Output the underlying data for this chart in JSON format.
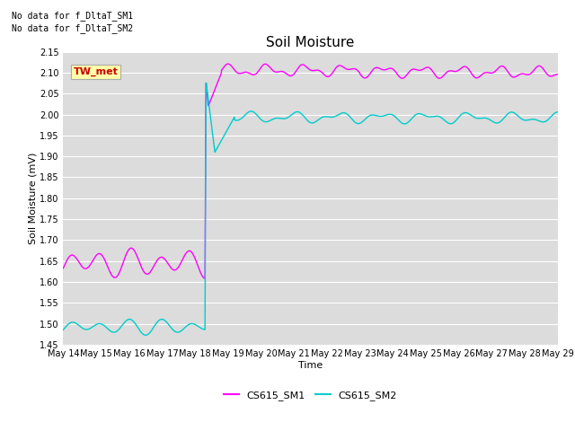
{
  "title": "Soil Moisture",
  "xlabel": "Time",
  "ylabel": "Soil Moisture (mV)",
  "ylim": [
    1.45,
    2.15
  ],
  "xlim": [
    0,
    15
  ],
  "x_tick_labels": [
    "May 14",
    "May 15",
    "May 16",
    "May 17",
    "May 18",
    "May 19",
    "May 20",
    "May 21",
    "May 22",
    "May 23",
    "May 24",
    "May 25",
    "May 26",
    "May 27",
    "May 28",
    "May 29"
  ],
  "bg_color": "#dcdcdc",
  "fig_color": "#ffffff",
  "annotation1": "No data for f_DltaT_SM1",
  "annotation2": "No data for f_DltaT_SM2",
  "tw_met_label": "TW_met",
  "legend_labels": [
    "CS615_SM1",
    "CS615_SM2"
  ],
  "line1_color": "#ff00ff",
  "line2_color": "#00cccc",
  "title_fontsize": 11,
  "axis_fontsize": 8,
  "tick_fontsize": 7,
  "annot_fontsize": 7
}
